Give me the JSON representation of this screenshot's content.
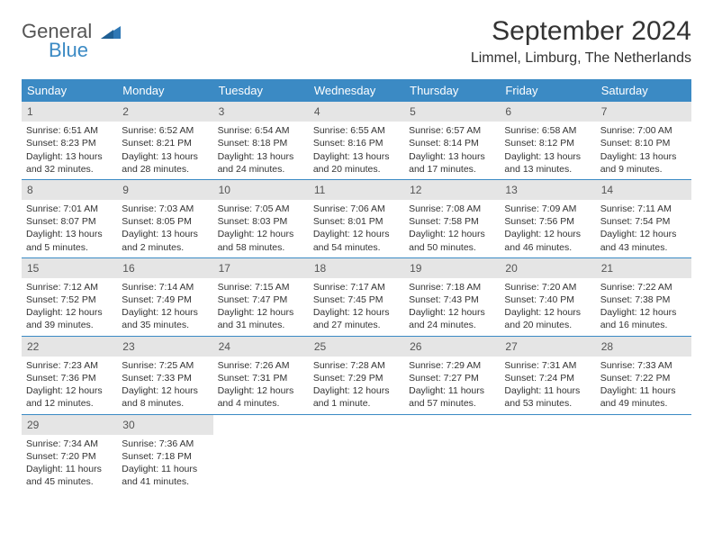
{
  "logo": {
    "line1": "General",
    "line2": "Blue",
    "triangle_color": "#2f78b5"
  },
  "title": "September 2024",
  "subtitle": "Limmel, Limburg, The Netherlands",
  "colors": {
    "header_bg": "#3b8ac4",
    "header_text": "#ffffff",
    "daynum_bg": "#e5e5e5",
    "rule": "#3b8ac4",
    "body_text": "#333333"
  },
  "day_headers": [
    "Sunday",
    "Monday",
    "Tuesday",
    "Wednesday",
    "Thursday",
    "Friday",
    "Saturday"
  ],
  "weeks": [
    [
      {
        "n": "1",
        "sr": "Sunrise: 6:51 AM",
        "ss": "Sunset: 8:23 PM",
        "d1": "Daylight: 13 hours",
        "d2": "and 32 minutes."
      },
      {
        "n": "2",
        "sr": "Sunrise: 6:52 AM",
        "ss": "Sunset: 8:21 PM",
        "d1": "Daylight: 13 hours",
        "d2": "and 28 minutes."
      },
      {
        "n": "3",
        "sr": "Sunrise: 6:54 AM",
        "ss": "Sunset: 8:18 PM",
        "d1": "Daylight: 13 hours",
        "d2": "and 24 minutes."
      },
      {
        "n": "4",
        "sr": "Sunrise: 6:55 AM",
        "ss": "Sunset: 8:16 PM",
        "d1": "Daylight: 13 hours",
        "d2": "and 20 minutes."
      },
      {
        "n": "5",
        "sr": "Sunrise: 6:57 AM",
        "ss": "Sunset: 8:14 PM",
        "d1": "Daylight: 13 hours",
        "d2": "and 17 minutes."
      },
      {
        "n": "6",
        "sr": "Sunrise: 6:58 AM",
        "ss": "Sunset: 8:12 PM",
        "d1": "Daylight: 13 hours",
        "d2": "and 13 minutes."
      },
      {
        "n": "7",
        "sr": "Sunrise: 7:00 AM",
        "ss": "Sunset: 8:10 PM",
        "d1": "Daylight: 13 hours",
        "d2": "and 9 minutes."
      }
    ],
    [
      {
        "n": "8",
        "sr": "Sunrise: 7:01 AM",
        "ss": "Sunset: 8:07 PM",
        "d1": "Daylight: 13 hours",
        "d2": "and 5 minutes."
      },
      {
        "n": "9",
        "sr": "Sunrise: 7:03 AM",
        "ss": "Sunset: 8:05 PM",
        "d1": "Daylight: 13 hours",
        "d2": "and 2 minutes."
      },
      {
        "n": "10",
        "sr": "Sunrise: 7:05 AM",
        "ss": "Sunset: 8:03 PM",
        "d1": "Daylight: 12 hours",
        "d2": "and 58 minutes."
      },
      {
        "n": "11",
        "sr": "Sunrise: 7:06 AM",
        "ss": "Sunset: 8:01 PM",
        "d1": "Daylight: 12 hours",
        "d2": "and 54 minutes."
      },
      {
        "n": "12",
        "sr": "Sunrise: 7:08 AM",
        "ss": "Sunset: 7:58 PM",
        "d1": "Daylight: 12 hours",
        "d2": "and 50 minutes."
      },
      {
        "n": "13",
        "sr": "Sunrise: 7:09 AM",
        "ss": "Sunset: 7:56 PM",
        "d1": "Daylight: 12 hours",
        "d2": "and 46 minutes."
      },
      {
        "n": "14",
        "sr": "Sunrise: 7:11 AM",
        "ss": "Sunset: 7:54 PM",
        "d1": "Daylight: 12 hours",
        "d2": "and 43 minutes."
      }
    ],
    [
      {
        "n": "15",
        "sr": "Sunrise: 7:12 AM",
        "ss": "Sunset: 7:52 PM",
        "d1": "Daylight: 12 hours",
        "d2": "and 39 minutes."
      },
      {
        "n": "16",
        "sr": "Sunrise: 7:14 AM",
        "ss": "Sunset: 7:49 PM",
        "d1": "Daylight: 12 hours",
        "d2": "and 35 minutes."
      },
      {
        "n": "17",
        "sr": "Sunrise: 7:15 AM",
        "ss": "Sunset: 7:47 PM",
        "d1": "Daylight: 12 hours",
        "d2": "and 31 minutes."
      },
      {
        "n": "18",
        "sr": "Sunrise: 7:17 AM",
        "ss": "Sunset: 7:45 PM",
        "d1": "Daylight: 12 hours",
        "d2": "and 27 minutes."
      },
      {
        "n": "19",
        "sr": "Sunrise: 7:18 AM",
        "ss": "Sunset: 7:43 PM",
        "d1": "Daylight: 12 hours",
        "d2": "and 24 minutes."
      },
      {
        "n": "20",
        "sr": "Sunrise: 7:20 AM",
        "ss": "Sunset: 7:40 PM",
        "d1": "Daylight: 12 hours",
        "d2": "and 20 minutes."
      },
      {
        "n": "21",
        "sr": "Sunrise: 7:22 AM",
        "ss": "Sunset: 7:38 PM",
        "d1": "Daylight: 12 hours",
        "d2": "and 16 minutes."
      }
    ],
    [
      {
        "n": "22",
        "sr": "Sunrise: 7:23 AM",
        "ss": "Sunset: 7:36 PM",
        "d1": "Daylight: 12 hours",
        "d2": "and 12 minutes."
      },
      {
        "n": "23",
        "sr": "Sunrise: 7:25 AM",
        "ss": "Sunset: 7:33 PM",
        "d1": "Daylight: 12 hours",
        "d2": "and 8 minutes."
      },
      {
        "n": "24",
        "sr": "Sunrise: 7:26 AM",
        "ss": "Sunset: 7:31 PM",
        "d1": "Daylight: 12 hours",
        "d2": "and 4 minutes."
      },
      {
        "n": "25",
        "sr": "Sunrise: 7:28 AM",
        "ss": "Sunset: 7:29 PM",
        "d1": "Daylight: 12 hours",
        "d2": "and 1 minute."
      },
      {
        "n": "26",
        "sr": "Sunrise: 7:29 AM",
        "ss": "Sunset: 7:27 PM",
        "d1": "Daylight: 11 hours",
        "d2": "and 57 minutes."
      },
      {
        "n": "27",
        "sr": "Sunrise: 7:31 AM",
        "ss": "Sunset: 7:24 PM",
        "d1": "Daylight: 11 hours",
        "d2": "and 53 minutes."
      },
      {
        "n": "28",
        "sr": "Sunrise: 7:33 AM",
        "ss": "Sunset: 7:22 PM",
        "d1": "Daylight: 11 hours",
        "d2": "and 49 minutes."
      }
    ],
    [
      {
        "n": "29",
        "sr": "Sunrise: 7:34 AM",
        "ss": "Sunset: 7:20 PM",
        "d1": "Daylight: 11 hours",
        "d2": "and 45 minutes."
      },
      {
        "n": "30",
        "sr": "Sunrise: 7:36 AM",
        "ss": "Sunset: 7:18 PM",
        "d1": "Daylight: 11 hours",
        "d2": "and 41 minutes."
      },
      null,
      null,
      null,
      null,
      null
    ]
  ]
}
